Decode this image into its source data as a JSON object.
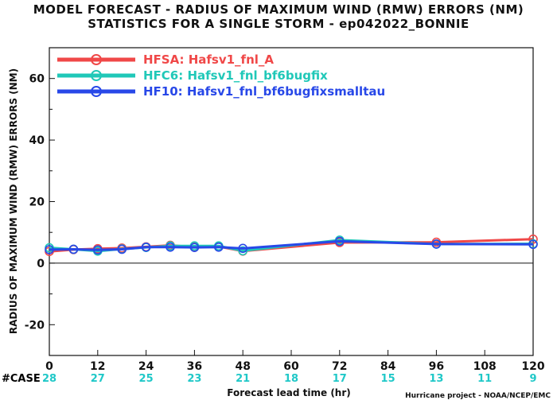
{
  "title_line1": "MODEL FORECAST - RADIUS OF MAXIMUM WIND (RMW) ERRORS (NM)",
  "title_line2": "STATISTICS FOR A SINGLE STORM - ep042022_BONNIE",
  "credit": "Hurricane project - NOAA/NCEP/EMC",
  "case_label": "#CASE",
  "case_color": "#20c8c8",
  "chart_data": {
    "type": "line",
    "title": "MODEL FORECAST - RADIUS OF MAXIMUM WIND (RMW) ERRORS (NM)",
    "subtitle": "STATISTICS FOR A SINGLE STORM - ep042022_BONNIE",
    "xlabel": "Forecast lead time (hr)",
    "ylabel": "RADIUS OF MAXIMUM WIND (RMW) ERRORS (NM)",
    "xlim": [
      0,
      120
    ],
    "ylim": [
      -30,
      70
    ],
    "xticks": [
      "0",
      "12",
      "24",
      "36",
      "48",
      "60",
      "72",
      "84",
      "96",
      "108",
      "120"
    ],
    "yticks": [
      "-20",
      "0",
      "20",
      "40",
      "60"
    ],
    "grid": false,
    "legend_position": "top-left",
    "case_counts": [
      "28",
      "27",
      "25",
      "23",
      "21",
      "18",
      "17",
      "15",
      "13",
      "11",
      "9"
    ],
    "series": [
      {
        "name": "HFSA:  Hafsv1_fnl_A",
        "color": "#f04848",
        "x": [
          0,
          6,
          12,
          18,
          24,
          30,
          36,
          42,
          48,
          72,
          96,
          120
        ],
        "y": [
          3.8,
          4.4,
          4.7,
          4.9,
          5.3,
          5.8,
          5.2,
          5.4,
          3.9,
          6.7,
          6.8,
          7.8
        ]
      },
      {
        "name": "HFC6:  Hafsv1_fnl_bf6bugfix",
        "color": "#20c8b8",
        "x": [
          0,
          6,
          12,
          18,
          24,
          30,
          36,
          42,
          48,
          72,
          96,
          120
        ],
        "y": [
          5.0,
          4.5,
          3.9,
          4.6,
          5.1,
          5.6,
          5.6,
          5.6,
          4.0,
          7.5,
          6.2,
          6.3
        ]
      },
      {
        "name": "HF10:  Hafsv1_fnl_bf6bugfixsmalltau",
        "color": "#2848e8",
        "x": [
          0,
          6,
          12,
          18,
          24,
          30,
          36,
          42,
          48,
          72,
          96,
          120
        ],
        "y": [
          4.4,
          4.5,
          4.3,
          4.5,
          5.2,
          5.2,
          5.1,
          5.2,
          4.8,
          7.1,
          6.2,
          6.1
        ]
      }
    ]
  }
}
